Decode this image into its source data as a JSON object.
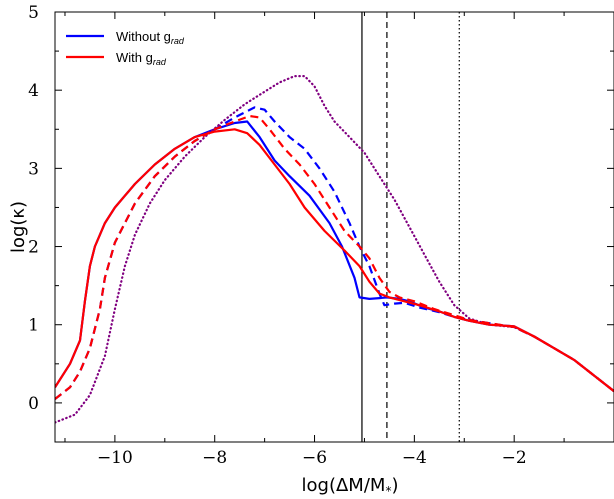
{
  "chart_data": {
    "type": "line",
    "xlabel": "log(ΔM/M*)",
    "ylabel": "log(κ)",
    "xlim": [
      -11.2,
      0.0
    ],
    "ylim": [
      -0.5,
      5.0
    ],
    "xticks": [
      -10,
      -8,
      -6,
      -4,
      -2
    ],
    "xtick_labels": [
      "−10",
      "−8",
      "−6",
      "−4",
      "−2"
    ],
    "yticks": [
      0,
      1,
      2,
      3,
      4,
      5
    ],
    "ytick_labels": [
      "0",
      "1",
      "2",
      "3",
      "4",
      "5"
    ],
    "grid": false,
    "legend": {
      "placement": "top-left",
      "entries": [
        {
          "label": "Without g",
          "subscript": "rad",
          "color": "#0000ff"
        },
        {
          "label": "With g",
          "subscript": "rad",
          "color": "#ff0000"
        }
      ]
    },
    "vlines": [
      {
        "x": -5.05,
        "color": "#000000",
        "style": "solid"
      },
      {
        "x": -4.55,
        "color": "#000000",
        "style": "dashed"
      },
      {
        "x": -3.1,
        "color": "#000000",
        "style": "dotted"
      }
    ],
    "series": [
      {
        "color": "#0000ff",
        "style": "solid",
        "legend_entry": 0,
        "x": [
          -11.2,
          -10.9,
          -10.7,
          -10.6,
          -10.5,
          -10.4,
          -10.2,
          -10.0,
          -9.6,
          -9.2,
          -8.8,
          -8.4,
          -8.0,
          -7.6,
          -7.35,
          -7.1,
          -6.8,
          -6.5,
          -6.1,
          -5.7,
          -5.45,
          -5.2,
          -5.1,
          -4.9,
          -4.7,
          -4.55,
          -4.3,
          -4.1,
          -3.8,
          -3.5,
          -3.2,
          -2.9,
          -2.5,
          -2.0,
          -1.6,
          -1.2,
          -0.8,
          -0.4,
          0.0
        ],
        "y": [
          0.2,
          0.5,
          0.8,
          1.3,
          1.75,
          2.0,
          2.3,
          2.5,
          2.8,
          3.05,
          3.25,
          3.4,
          3.5,
          3.58,
          3.6,
          3.4,
          3.1,
          2.9,
          2.65,
          2.3,
          2.0,
          1.6,
          1.35,
          1.33,
          1.34,
          1.35,
          1.33,
          1.3,
          1.22,
          1.17,
          1.1,
          1.05,
          1.0,
          0.98,
          0.85,
          0.7,
          0.55,
          0.35,
          0.15
        ]
      },
      {
        "color": "#0000ff",
        "style": "dashed",
        "legend_entry": 0,
        "x": [
          -11.2,
          -10.9,
          -10.7,
          -10.5,
          -10.3,
          -10.2,
          -10.0,
          -9.6,
          -9.2,
          -8.8,
          -8.4,
          -8.0,
          -7.6,
          -7.2,
          -7.0,
          -6.8,
          -6.5,
          -6.2,
          -5.9,
          -5.6,
          -5.3,
          -5.1,
          -4.9,
          -4.7,
          -4.6,
          -4.4,
          -4.2,
          -3.9,
          -3.5,
          -3.2,
          -2.9,
          -2.5,
          -2.0,
          -1.6,
          -1.2,
          -0.8,
          -0.4,
          0.0
        ],
        "y": [
          0.05,
          0.2,
          0.4,
          0.7,
          1.2,
          1.6,
          2.05,
          2.55,
          2.9,
          3.15,
          3.35,
          3.5,
          3.65,
          3.78,
          3.75,
          3.6,
          3.4,
          3.25,
          3.0,
          2.7,
          2.3,
          2.0,
          1.75,
          1.4,
          1.25,
          1.27,
          1.28,
          1.22,
          1.16,
          1.1,
          1.06,
          1.02,
          0.97,
          0.85,
          0.7,
          0.55,
          0.35,
          0.15
        ]
      },
      {
        "color": "#800080",
        "style": "dotted",
        "legend_entry": null,
        "x": [
          -11.2,
          -10.8,
          -10.5,
          -10.2,
          -10.0,
          -9.8,
          -9.6,
          -9.3,
          -9.0,
          -8.6,
          -8.2,
          -7.8,
          -7.4,
          -7.0,
          -6.7,
          -6.4,
          -6.2,
          -6.0,
          -5.8,
          -5.6,
          -5.3,
          -5.0,
          -4.7,
          -4.4,
          -4.1,
          -3.8,
          -3.5,
          -3.2,
          -2.9,
          -2.5,
          -2.0,
          -1.6,
          -1.2,
          -0.8,
          -0.4,
          0.0
        ],
        "y": [
          -0.25,
          -0.15,
          0.1,
          0.6,
          1.2,
          1.75,
          2.15,
          2.55,
          2.85,
          3.15,
          3.4,
          3.62,
          3.82,
          3.98,
          4.1,
          4.18,
          4.18,
          4.05,
          3.8,
          3.6,
          3.4,
          3.2,
          2.9,
          2.6,
          2.25,
          1.9,
          1.55,
          1.25,
          1.08,
          1.0,
          0.97,
          0.85,
          0.7,
          0.55,
          0.35,
          0.15
        ]
      },
      {
        "color": "#ff0000",
        "style": "solid",
        "legend_entry": 1,
        "x": [
          -11.2,
          -10.9,
          -10.7,
          -10.6,
          -10.5,
          -10.4,
          -10.2,
          -10.0,
          -9.6,
          -9.2,
          -8.8,
          -8.4,
          -8.0,
          -7.6,
          -7.35,
          -7.1,
          -6.8,
          -6.5,
          -6.2,
          -5.8,
          -5.4,
          -5.1,
          -4.9,
          -4.7,
          -4.5,
          -4.2,
          -3.9,
          -3.5,
          -3.2,
          -2.9,
          -2.5,
          -2.0,
          -1.6,
          -1.2,
          -0.8,
          -0.4,
          0.0
        ],
        "y": [
          0.2,
          0.5,
          0.8,
          1.3,
          1.75,
          2.0,
          2.3,
          2.5,
          2.8,
          3.05,
          3.25,
          3.4,
          3.47,
          3.5,
          3.45,
          3.3,
          3.05,
          2.8,
          2.5,
          2.2,
          1.95,
          1.75,
          1.55,
          1.4,
          1.35,
          1.3,
          1.25,
          1.17,
          1.1,
          1.05,
          1.0,
          0.98,
          0.85,
          0.7,
          0.55,
          0.35,
          0.15
        ]
      },
      {
        "color": "#ff0000",
        "style": "dashed",
        "legend_entry": 1,
        "x": [
          -11.2,
          -10.9,
          -10.7,
          -10.5,
          -10.3,
          -10.2,
          -10.0,
          -9.6,
          -9.2,
          -8.8,
          -8.4,
          -8.0,
          -7.6,
          -7.3,
          -7.1,
          -6.9,
          -6.6,
          -6.3,
          -6.0,
          -5.7,
          -5.4,
          -5.1,
          -4.9,
          -4.7,
          -4.5,
          -4.3,
          -4.0,
          -3.6,
          -3.2,
          -2.9,
          -2.5,
          -2.0,
          -1.6,
          -1.2,
          -0.8,
          -0.4,
          0.0
        ],
        "y": [
          0.05,
          0.2,
          0.4,
          0.7,
          1.2,
          1.6,
          2.05,
          2.55,
          2.9,
          3.15,
          3.35,
          3.5,
          3.6,
          3.67,
          3.65,
          3.5,
          3.25,
          3.05,
          2.8,
          2.5,
          2.2,
          2.0,
          1.85,
          1.6,
          1.42,
          1.35,
          1.3,
          1.2,
          1.12,
          1.06,
          1.02,
          0.97,
          0.85,
          0.7,
          0.55,
          0.35,
          0.15
        ]
      }
    ]
  }
}
